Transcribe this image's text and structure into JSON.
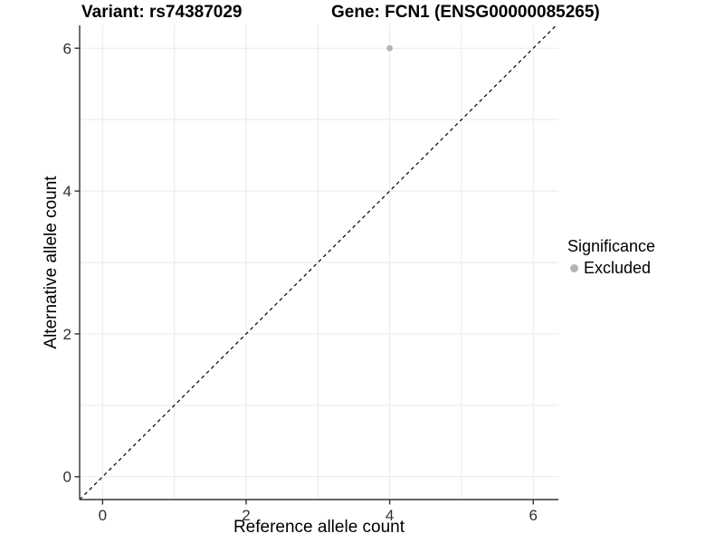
{
  "chart_data": {
    "type": "scatter",
    "titles": {
      "left": "Variant: rs74387029",
      "right": "Gene: FCN1 (ENSG00000085265)"
    },
    "xlabel": "Reference allele count",
    "ylabel": "Alternative allele count",
    "xlim": [
      -0.32,
      6.35
    ],
    "ylim": [
      -0.32,
      6.32
    ],
    "x_ticks": [
      0,
      2,
      4,
      6
    ],
    "y_ticks": [
      0,
      2,
      4,
      6
    ],
    "grid": {
      "show": true,
      "step": 1
    },
    "reference_line": {
      "kind": "identity",
      "dashed": true
    },
    "series": [
      {
        "name": "Excluded",
        "marker": "circle",
        "size": 3.4,
        "points": [
          {
            "x": 4,
            "y": 6
          }
        ]
      }
    ],
    "legend": {
      "title": "Significance",
      "position": "right",
      "items": [
        {
          "label": "Excluded"
        }
      ]
    }
  },
  "colors": {
    "background": "#ffffff",
    "gridline": "#e9e9e9",
    "axis_line": "#333333",
    "tick_mark": "#333333",
    "tick_label": "#303030",
    "reference_line": "#000000",
    "point": "#b5b5b5",
    "text": "#000000"
  }
}
